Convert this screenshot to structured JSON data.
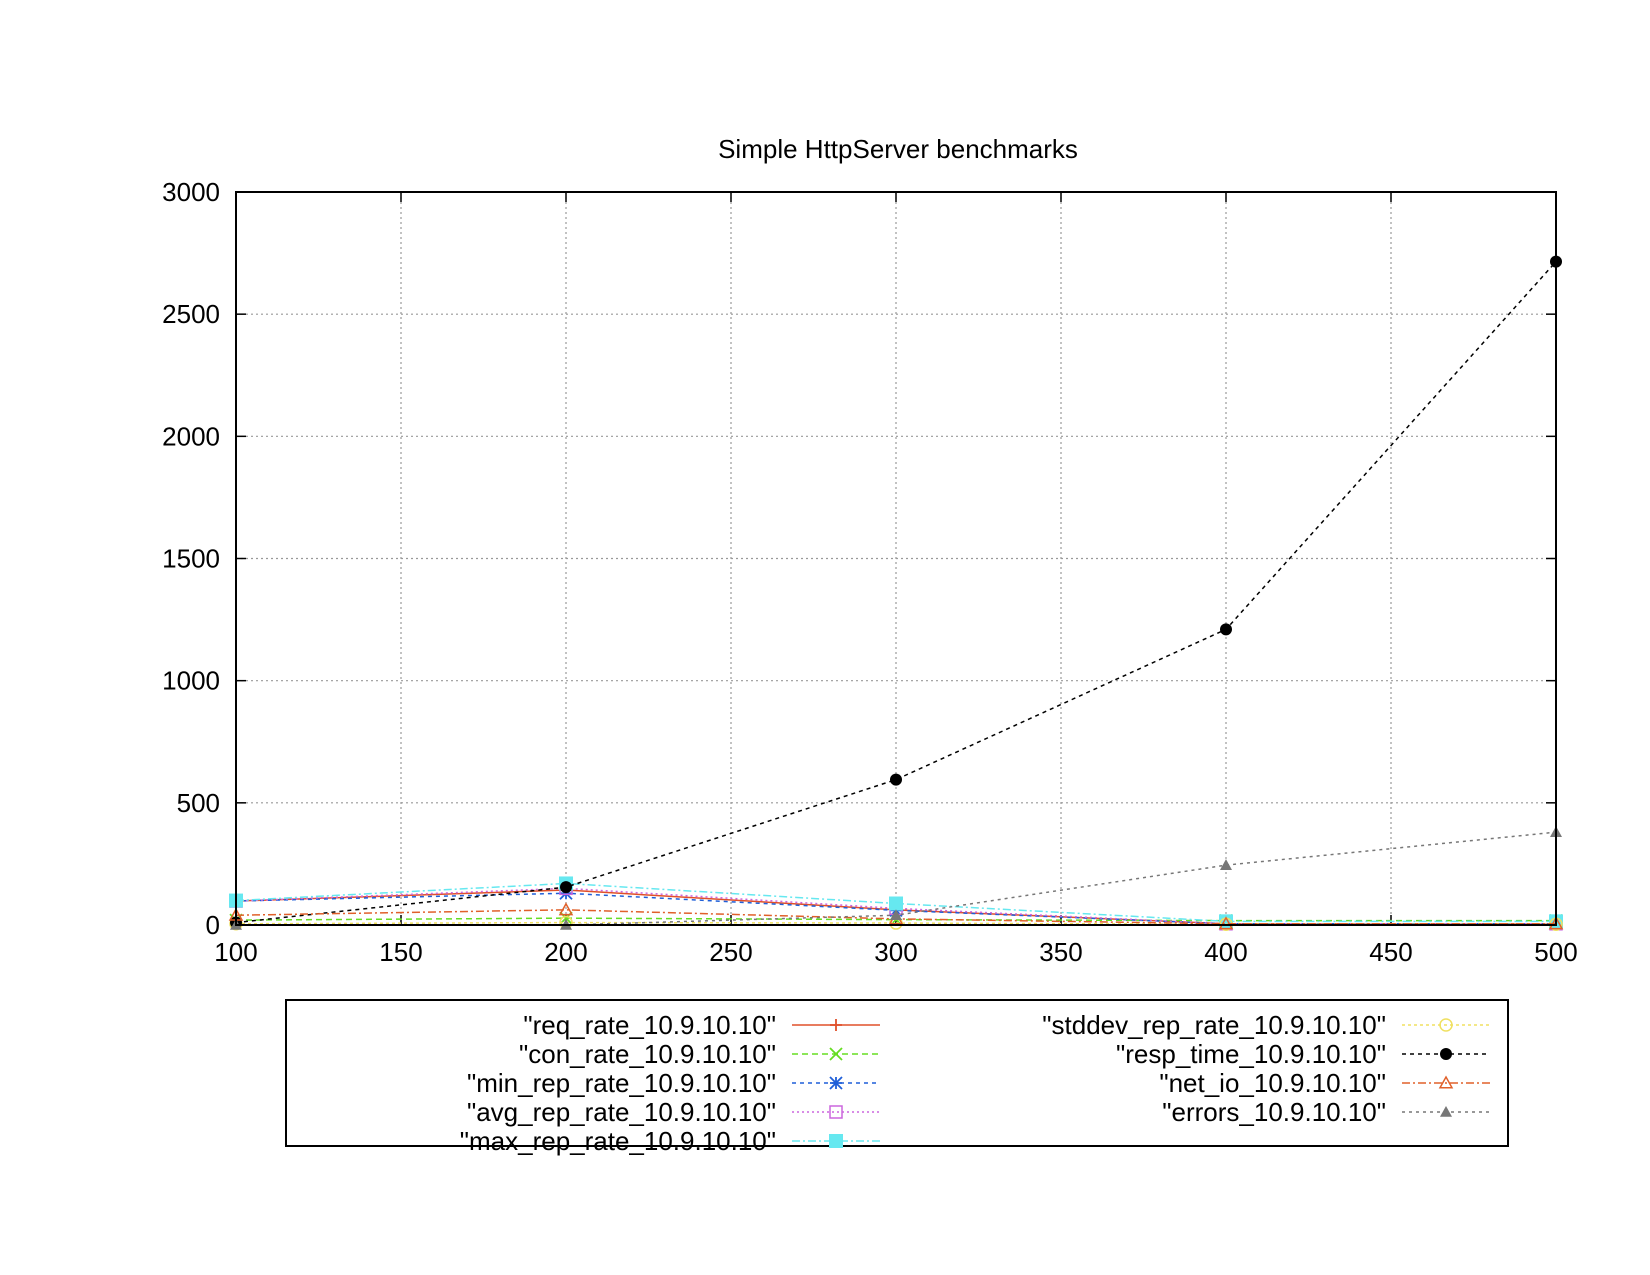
{
  "chart_data": {
    "type": "line",
    "title": "Simple HttpServer benchmarks",
    "xlabel": "",
    "ylabel": "",
    "xlim": [
      100,
      500
    ],
    "ylim": [
      0,
      3000
    ],
    "x_ticks": [
      100,
      150,
      200,
      250,
      300,
      350,
      400,
      450,
      500
    ],
    "y_ticks": [
      0,
      500,
      1000,
      1500,
      2000,
      2500,
      3000
    ],
    "grid": true,
    "legend_position": "bottom",
    "x": [
      100,
      200,
      300,
      400,
      500
    ],
    "series": [
      {
        "name": "\"req_rate_10.9.10.10\"",
        "color": "#e0502a",
        "marker": "plus",
        "dash": "",
        "values": [
          98,
          143,
          62,
          5,
          5
        ]
      },
      {
        "name": "\"con_rate_10.9.10.10\"",
        "color": "#66dd22",
        "marker": "cross",
        "dash": "6,4",
        "values": [
          20,
          28,
          22,
          18,
          18
        ]
      },
      {
        "name": "\"min_rep_rate_10.9.10.10\"",
        "color": "#1f5fd8",
        "marker": "star",
        "dash": "4,4",
        "values": [
          98,
          130,
          60,
          5,
          5
        ]
      },
      {
        "name": "\"avg_rep_rate_10.9.10.10\"",
        "color": "#cc66dd",
        "marker": "open-square",
        "dash": "2,3",
        "values": [
          98,
          150,
          68,
          5,
          5
        ]
      },
      {
        "name": "\"max_rep_rate_10.9.10.10\"",
        "color": "#66e8f0",
        "marker": "filled-square",
        "dash": "8,3,2,3",
        "values": [
          100,
          170,
          88,
          15,
          15
        ]
      },
      {
        "name": "\"stddev_rep_rate_10.9.10.10\"",
        "color": "#f0e060",
        "marker": "open-circle",
        "dash": "3,3",
        "values": [
          5,
          10,
          8,
          3,
          3
        ]
      },
      {
        "name": "\"resp_time_10.9.10.10\"",
        "color": "#000000",
        "marker": "filled-circle",
        "dash": "4,4",
        "values": [
          10,
          155,
          595,
          1210,
          2715
        ]
      },
      {
        "name": "\"net_io_10.9.10.10\"",
        "color": "#e0602a",
        "marker": "open-triangle",
        "dash": "8,3,2,3",
        "values": [
          40,
          62,
          25,
          5,
          5
        ]
      },
      {
        "name": "\"errors_10.9.10.10\"",
        "color": "#777777",
        "marker": "filled-triangle",
        "dash": "3,4",
        "values": [
          0,
          0,
          40,
          245,
          380
        ]
      }
    ]
  }
}
